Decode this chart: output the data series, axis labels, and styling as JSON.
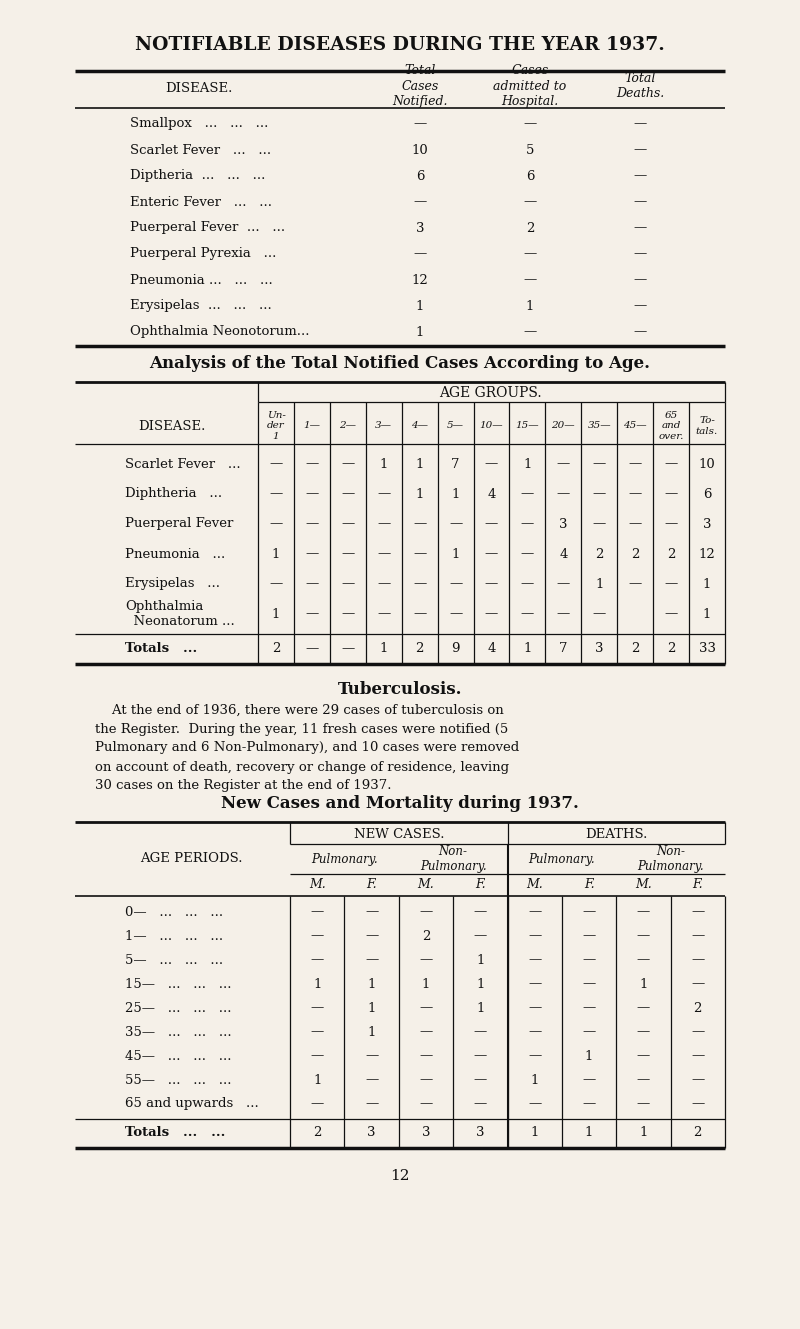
{
  "bg_color": "#f5f0e8",
  "title": "NOTIFIABLE DISEASES DURING THE YEAR 1937.",
  "table1_rows": [
    [
      "Smallpox   ...   ...   ...",
      "—",
      "—",
      "—"
    ],
    [
      "Scarlet Fever   ...   ...",
      "10",
      "5",
      "—"
    ],
    [
      "Diptheria  ...   ...   ...",
      "6",
      "6",
      "—"
    ],
    [
      "Enteric Fever   ...   ...",
      "—",
      "—",
      "—"
    ],
    [
      "Puerperal Fever  ...   ...",
      "3",
      "2",
      "—"
    ],
    [
      "Puerperal Pyrexia   ...",
      "—",
      "—",
      "—"
    ],
    [
      "Pneumonia ...   ...   ...",
      "12",
      "—",
      "—"
    ],
    [
      "Erysipelas  ...   ...   ...",
      "1",
      "1",
      "—"
    ],
    [
      "Ophthalmia Neonotorum...",
      "1",
      "—",
      "—"
    ]
  ],
  "table2_title": "Analysis of the Total Notified Cases According to Age.",
  "table2_col_headers": [
    "Un-\nder\n1",
    "1—",
    "2—",
    "3—",
    "4—",
    "5—",
    "10—",
    "15—",
    "20—",
    "35—",
    "45—",
    "65\nand\nover.",
    "To-\ntals."
  ],
  "table2_rows": [
    [
      "Scarlet Fever   ...",
      "—",
      "—",
      "—",
      "1",
      "1",
      "7",
      "—",
      "1",
      "—",
      "—",
      "—",
      "—",
      "10"
    ],
    [
      "Diphtheria   ...",
      "—",
      "—",
      "—",
      "—",
      "1",
      "1",
      "4",
      "—",
      "—",
      "—",
      "—",
      "—",
      "6"
    ],
    [
      "Puerperal Fever",
      "—",
      "—",
      "—",
      "—",
      "—",
      "—",
      "—",
      "—",
      "3",
      "—",
      "—",
      "—",
      "3"
    ],
    [
      "Pneumonia   ...",
      "1",
      "—",
      "—",
      "—",
      "—",
      "1",
      "—",
      "—",
      "4",
      "2",
      "2",
      "2",
      "12"
    ],
    [
      "Erysipelas   ...",
      "—",
      "—",
      "—",
      "—",
      "—",
      "—",
      "—",
      "—",
      "—",
      "1",
      "—",
      "—",
      "1"
    ],
    [
      "Ophthalmia\n  Neonatorum ...",
      "1",
      "—",
      "—",
      "—",
      "—",
      "—",
      "—",
      "—",
      "—",
      "—",
      "",
      "—",
      "1"
    ]
  ],
  "table2_totals": [
    "Totals   ...",
    "2",
    "—",
    "—",
    "1",
    "2",
    "9",
    "4",
    "1",
    "7",
    "3",
    "2",
    "2",
    "33"
  ],
  "tb_title": "Tuberculosis.",
  "tb_lines": [
    "    At the end of 1936, there were 29 cases of tuberculosis on",
    "the Register.  During the year, 11 fresh cases were notified (5",
    "Pulmonary and 6 Non-Pulmonary), and 10 cases were removed",
    "on account of death, recovery or change of residence, leaving",
    "30 cases on the Register at the end of 1937."
  ],
  "table3_title": "New Cases and Mortality during 1937.",
  "table3_col_sub": [
    "Pulmonary.",
    "Non-\nPulmonary.",
    "Pulmonary.",
    "Non-\nPulmonary."
  ],
  "table3_mf": [
    "M.",
    "F.",
    "M.",
    "F.",
    "M.",
    "F.",
    "M.",
    "F."
  ],
  "table3_rows": [
    [
      "0—   ...   ...   ...",
      "—",
      "—",
      "—",
      "—",
      "—",
      "—",
      "—",
      "—"
    ],
    [
      "1—   ...   ...   ...",
      "—",
      "—",
      "2",
      "—",
      "—",
      "—",
      "—",
      "—"
    ],
    [
      "5—   ...   ...   ...",
      "—",
      "—",
      "—",
      "1",
      "—",
      "—",
      "—",
      "—"
    ],
    [
      "15—   ...   ...   ...",
      "1",
      "1",
      "1",
      "1",
      "—",
      "—",
      "1",
      "—"
    ],
    [
      "25—   ...   ...   ...",
      "—",
      "1",
      "—",
      "1",
      "—",
      "—",
      "—",
      "2"
    ],
    [
      "35—   ...   ...   ...",
      "—",
      "1",
      "—",
      "—",
      "—",
      "—",
      "—",
      "—"
    ],
    [
      "45—   ...   ...   ...",
      "—",
      "—",
      "—",
      "—",
      "—",
      "1",
      "—",
      "—"
    ],
    [
      "55—   ...   ...   ...",
      "1",
      "—",
      "—",
      "—",
      "1",
      "—",
      "—",
      "—"
    ],
    [
      "65 and upwards   ...",
      "—",
      "—",
      "—",
      "—",
      "—",
      "—",
      "—",
      "—"
    ]
  ],
  "table3_totals": [
    "Totals   ...   ...",
    "2",
    "3",
    "3",
    "3",
    "1",
    "1",
    "1",
    "2"
  ],
  "page_number": "12"
}
